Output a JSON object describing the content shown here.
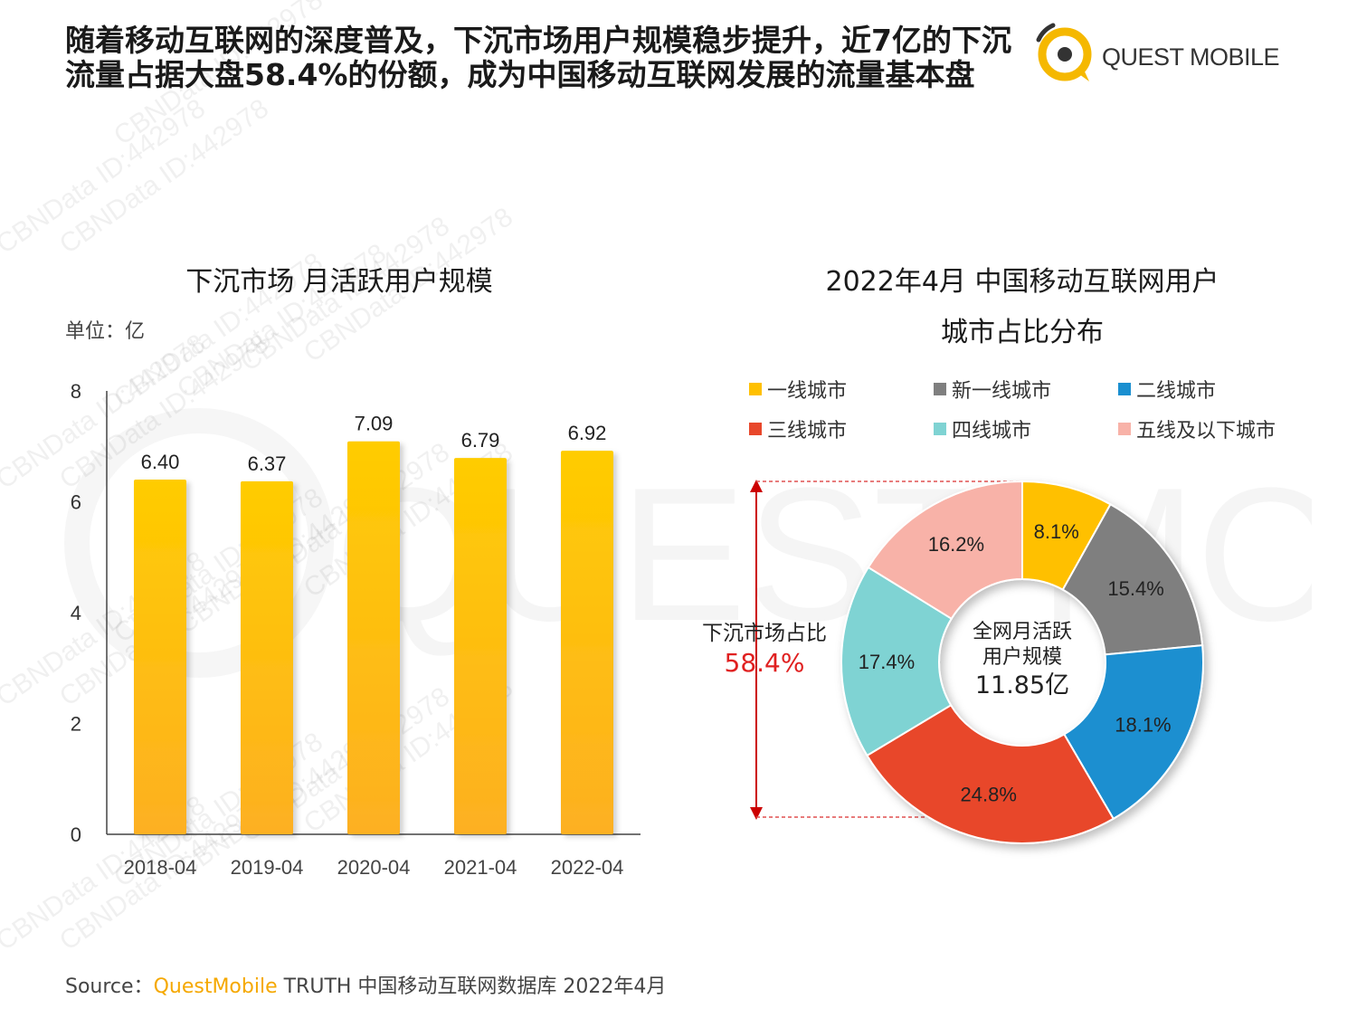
{
  "headline": "随着移动互联网的深度普及，下沉市场用户规模稳步提升，近7亿的下沉流量占据大盘58.4%的份额，成为中国移动互联网发展的流量基本盘",
  "logo": {
    "text": "QUEST MOBILE",
    "color": "#f5b800"
  },
  "watermark": {
    "text": "CBNData ID:442978",
    "big_text": "QUEST MOBILE"
  },
  "bar_chart": {
    "title": "下沉市场 月活跃用户规模",
    "unit": "单位：亿"
  },
  "donut_chart": {
    "title_line1": "2022年4月 中国移动互联网用户",
    "title_line2": "城市占比分布",
    "center_line1": "全网月活跃",
    "center_line2": "用户规模",
    "center_value": "11.85亿",
    "share_label": "下沉市场占比",
    "share_value": "58.4%"
  },
  "chart_data": [
    {
      "type": "bar",
      "title": "下沉市场 月活跃用户规模",
      "categories": [
        "2018-04",
        "2019-04",
        "2020-04",
        "2021-04",
        "2022-04"
      ],
      "values": [
        6.4,
        6.37,
        7.09,
        6.79,
        6.92
      ],
      "value_labels": [
        "6.40",
        "6.37",
        "7.09",
        "6.79",
        "6.92"
      ],
      "ylim": [
        0,
        8
      ],
      "yticks": [
        0,
        2,
        4,
        6,
        8
      ],
      "color": "#ffc000",
      "grid": false
    },
    {
      "type": "pie",
      "title": "2022年4月 中国移动互联网用户城市占比分布",
      "donut": true,
      "labels": [
        "一线城市",
        "新一线城市",
        "二线城市",
        "三线城市",
        "四线城市",
        "五线及以下城市"
      ],
      "values": [
        8.1,
        15.4,
        18.1,
        24.8,
        17.4,
        16.2
      ],
      "value_labels": [
        "8.1%",
        "15.4%",
        "18.1%",
        "24.8%",
        "17.4%",
        "16.2%"
      ],
      "colors": [
        "#ffc000",
        "#7f7f7f",
        "#1a8fd0",
        "#e8472b",
        "#7fd3d3",
        "#f8b2a8"
      ],
      "legend_position": "top"
    }
  ],
  "source": {
    "prefix": "Source：",
    "brand": "QuestMobile",
    "rest": " TRUTH 中国移动互联网数据库 2022年4月"
  }
}
